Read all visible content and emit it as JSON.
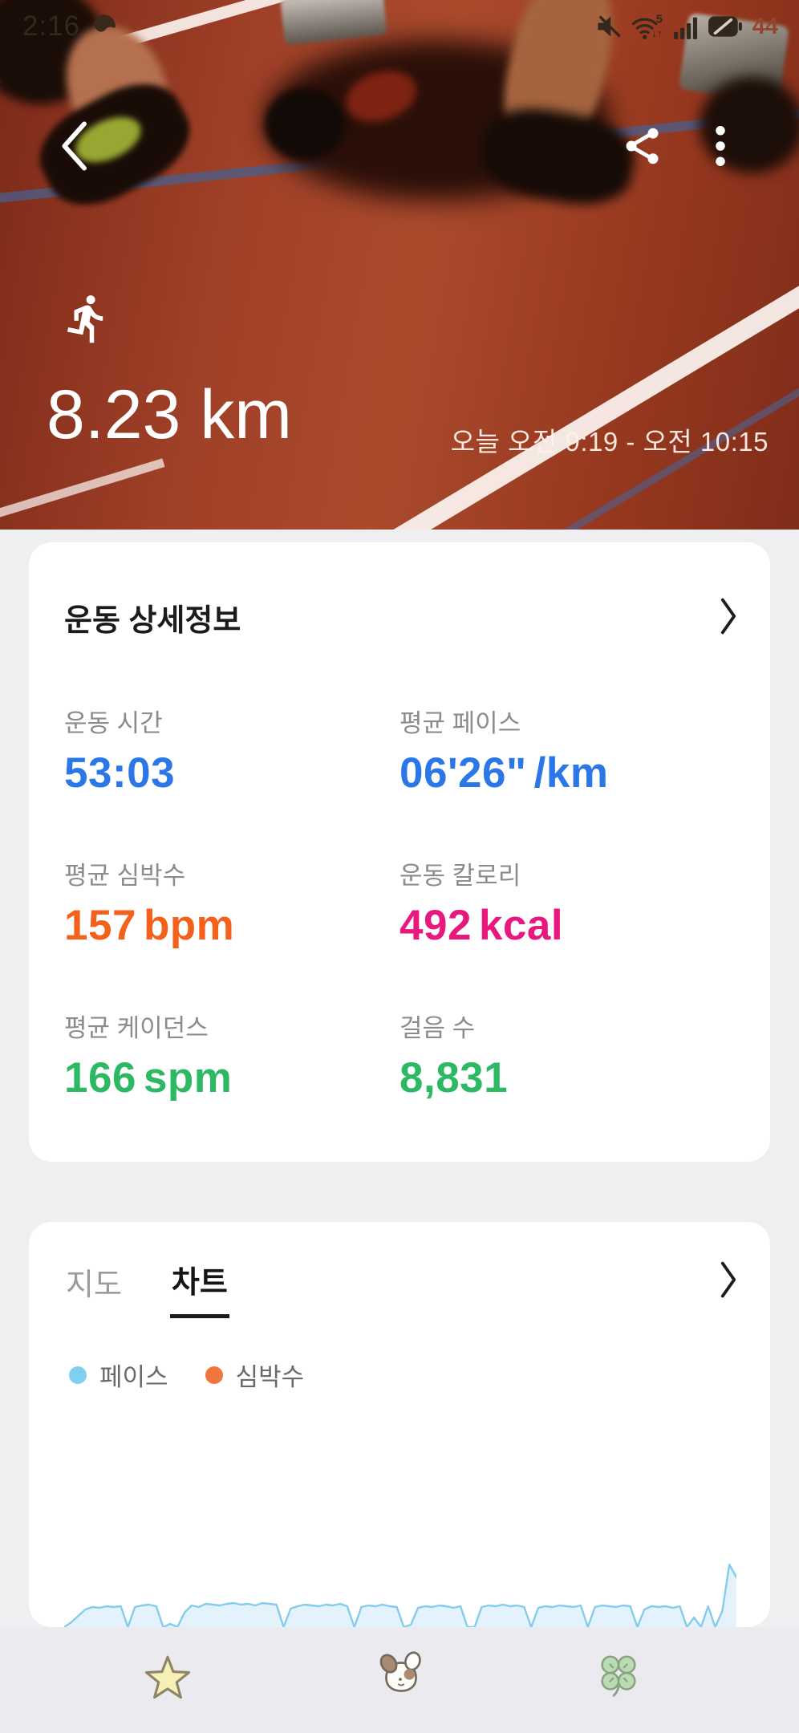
{
  "status_bar": {
    "time": "2:16",
    "wifi_label": "5",
    "wifi_arrows": "↓↑",
    "battery": "44"
  },
  "hero": {
    "distance": "8.23 km",
    "session_time": "오늘 오전 9:19 - 오전 10:15"
  },
  "details_card": {
    "title": "운동 상세정보",
    "stats": [
      {
        "label": "운동 시간",
        "value": "53:03",
        "unit": "",
        "color": "#2b77e8"
      },
      {
        "label": "평균 페이스",
        "value": "06'26\"",
        "unit": "/km",
        "color": "#2b77e8"
      },
      {
        "label": "평균 심박수",
        "value": "157",
        "unit": "bpm",
        "color": "#f4611d"
      },
      {
        "label": "운동 칼로리",
        "value": "492",
        "unit": "kcal",
        "color": "#e8187f"
      },
      {
        "label": "평균 케이던스",
        "value": "166",
        "unit": "spm",
        "color": "#2db863"
      },
      {
        "label": "걸음 수",
        "value": "8,831",
        "unit": "",
        "color": "#2db863"
      }
    ]
  },
  "chart_card": {
    "tabs": [
      {
        "label": "지도",
        "active": false
      },
      {
        "label": "차트",
        "active": true
      }
    ],
    "legend": [
      {
        "label": "페이스",
        "color": "#7fd0f0"
      },
      {
        "label": "심박수",
        "color": "#f1763b"
      }
    ]
  },
  "chart_data": {
    "type": "area",
    "title": "",
    "x_labels_visible": false,
    "y_labels_visible": false,
    "note": "Pace trace over the session; y values are relative heights 0-100 (no axis labels shown). Dips to 0 are pauses; spike near the end.",
    "series": [
      {
        "name": "페이스",
        "color": "#85ccec",
        "fill": "#e3f2fb",
        "values": [
          0,
          6,
          14,
          22,
          25,
          24,
          26,
          25,
          26,
          0,
          25,
          27,
          28,
          26,
          0,
          4,
          0,
          18,
          27,
          25,
          29,
          28,
          27,
          29,
          30,
          28,
          29,
          27,
          30,
          29,
          28,
          0,
          23,
          26,
          28,
          27,
          26,
          28,
          27,
          29,
          26,
          0,
          25,
          27,
          26,
          28,
          26,
          25,
          0,
          3,
          24,
          26,
          25,
          27,
          26,
          24,
          26,
          0,
          0,
          25,
          27,
          26,
          28,
          26,
          27,
          25,
          0,
          24,
          26,
          25,
          27,
          26,
          25,
          27,
          0,
          25,
          27,
          26,
          25,
          27,
          26,
          0,
          22,
          26,
          25,
          26,
          24,
          26,
          0,
          12,
          0,
          26,
          0,
          20,
          78,
          62
        ]
      }
    ]
  }
}
